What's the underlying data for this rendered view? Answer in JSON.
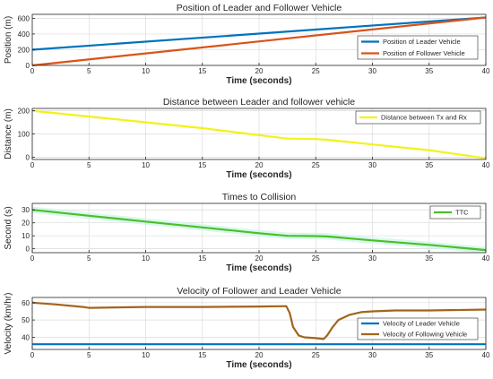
{
  "chart_data": [
    {
      "type": "line",
      "title": "Position of Leader and Follower Vehicle",
      "xlabel": "Time (seconds)",
      "ylabel": "Position (m)",
      "xlim": [
        0,
        40
      ],
      "ylim": [
        0,
        650
      ],
      "xticks": [
        0,
        5,
        10,
        15,
        20,
        25,
        30,
        35,
        40
      ],
      "yticks": [
        0,
        200,
        400,
        600
      ],
      "grid": true,
      "legend": "right",
      "series": [
        {
          "name": "Position of Leader Vehicle",
          "color": "#0072BD",
          "x": [
            0,
            40
          ],
          "y": [
            200,
            610
          ]
        },
        {
          "name": "Position of Follower Vehicle",
          "color": "#D95319",
          "x": [
            0,
            40
          ],
          "y": [
            0,
            610
          ]
        }
      ]
    },
    {
      "type": "line",
      "title": "Distance between Leader and follower vehicle",
      "xlabel": "Time (seconds)",
      "ylabel": "Distance (m)",
      "xlim": [
        0,
        40
      ],
      "ylim": [
        -10,
        210
      ],
      "xticks": [
        0,
        5,
        10,
        15,
        20,
        25,
        30,
        35,
        40
      ],
      "yticks": [
        0,
        100,
        200
      ],
      "grid": true,
      "legend": "top-right",
      "series": [
        {
          "name": "Distance between Tx and Rx",
          "color": "#F2F21A",
          "x": [
            0,
            5,
            10,
            15,
            20,
            22.5,
            25,
            26,
            30,
            35,
            40
          ],
          "y": [
            200,
            175,
            150,
            125,
            95,
            80,
            78,
            75,
            55,
            30,
            -5
          ]
        }
      ]
    },
    {
      "type": "line",
      "title": "Times to Collision",
      "xlabel": "Time (seconds)",
      "ylabel": "Second (s)",
      "xlim": [
        0,
        40
      ],
      "ylim": [
        -3,
        35
      ],
      "xticks": [
        0,
        5,
        10,
        15,
        20,
        25,
        30,
        35,
        40
      ],
      "yticks": [
        0,
        10,
        20,
        30
      ],
      "grid": true,
      "legend": "top-right",
      "series": [
        {
          "name": "TTC",
          "color": "#4DBE26",
          "x": [
            0,
            5,
            10,
            15,
            20,
            22.5,
            25,
            26,
            30,
            35,
            40
          ],
          "y": [
            30,
            25.5,
            21,
            16.5,
            12,
            10,
            9.8,
            9.5,
            6.5,
            3,
            -1
          ]
        }
      ]
    },
    {
      "type": "line",
      "title": "Velocity of Follower and Leader Vehicle",
      "xlabel": "Time (seconds)",
      "ylabel": "Velocity (km/hr)",
      "xlim": [
        0,
        40
      ],
      "ylim": [
        33,
        63
      ],
      "xticks": [
        0,
        5,
        10,
        15,
        20,
        25,
        30,
        35,
        40
      ],
      "yticks": [
        40,
        50,
        60
      ],
      "grid": true,
      "legend": "right",
      "series": [
        {
          "name": "Velocity of Leader Vehicle",
          "color": "#0072BD",
          "x": [
            0,
            40
          ],
          "y": [
            36,
            36
          ]
        },
        {
          "name": "Velocity of Following Vehicle",
          "color": "#A2641E",
          "x": [
            0,
            2,
            4.5,
            5,
            10,
            15,
            20,
            22.4,
            22.7,
            23,
            23.5,
            24,
            25,
            25.7,
            26,
            26.5,
            27,
            28,
            29,
            30,
            32,
            35,
            40
          ],
          "y": [
            60,
            59,
            57.5,
            57,
            57.5,
            57.5,
            57.8,
            58,
            54,
            46,
            41,
            40,
            39.5,
            39,
            41,
            46,
            50,
            53,
            54.5,
            55,
            55.5,
            55.5,
            56
          ]
        }
      ]
    }
  ]
}
